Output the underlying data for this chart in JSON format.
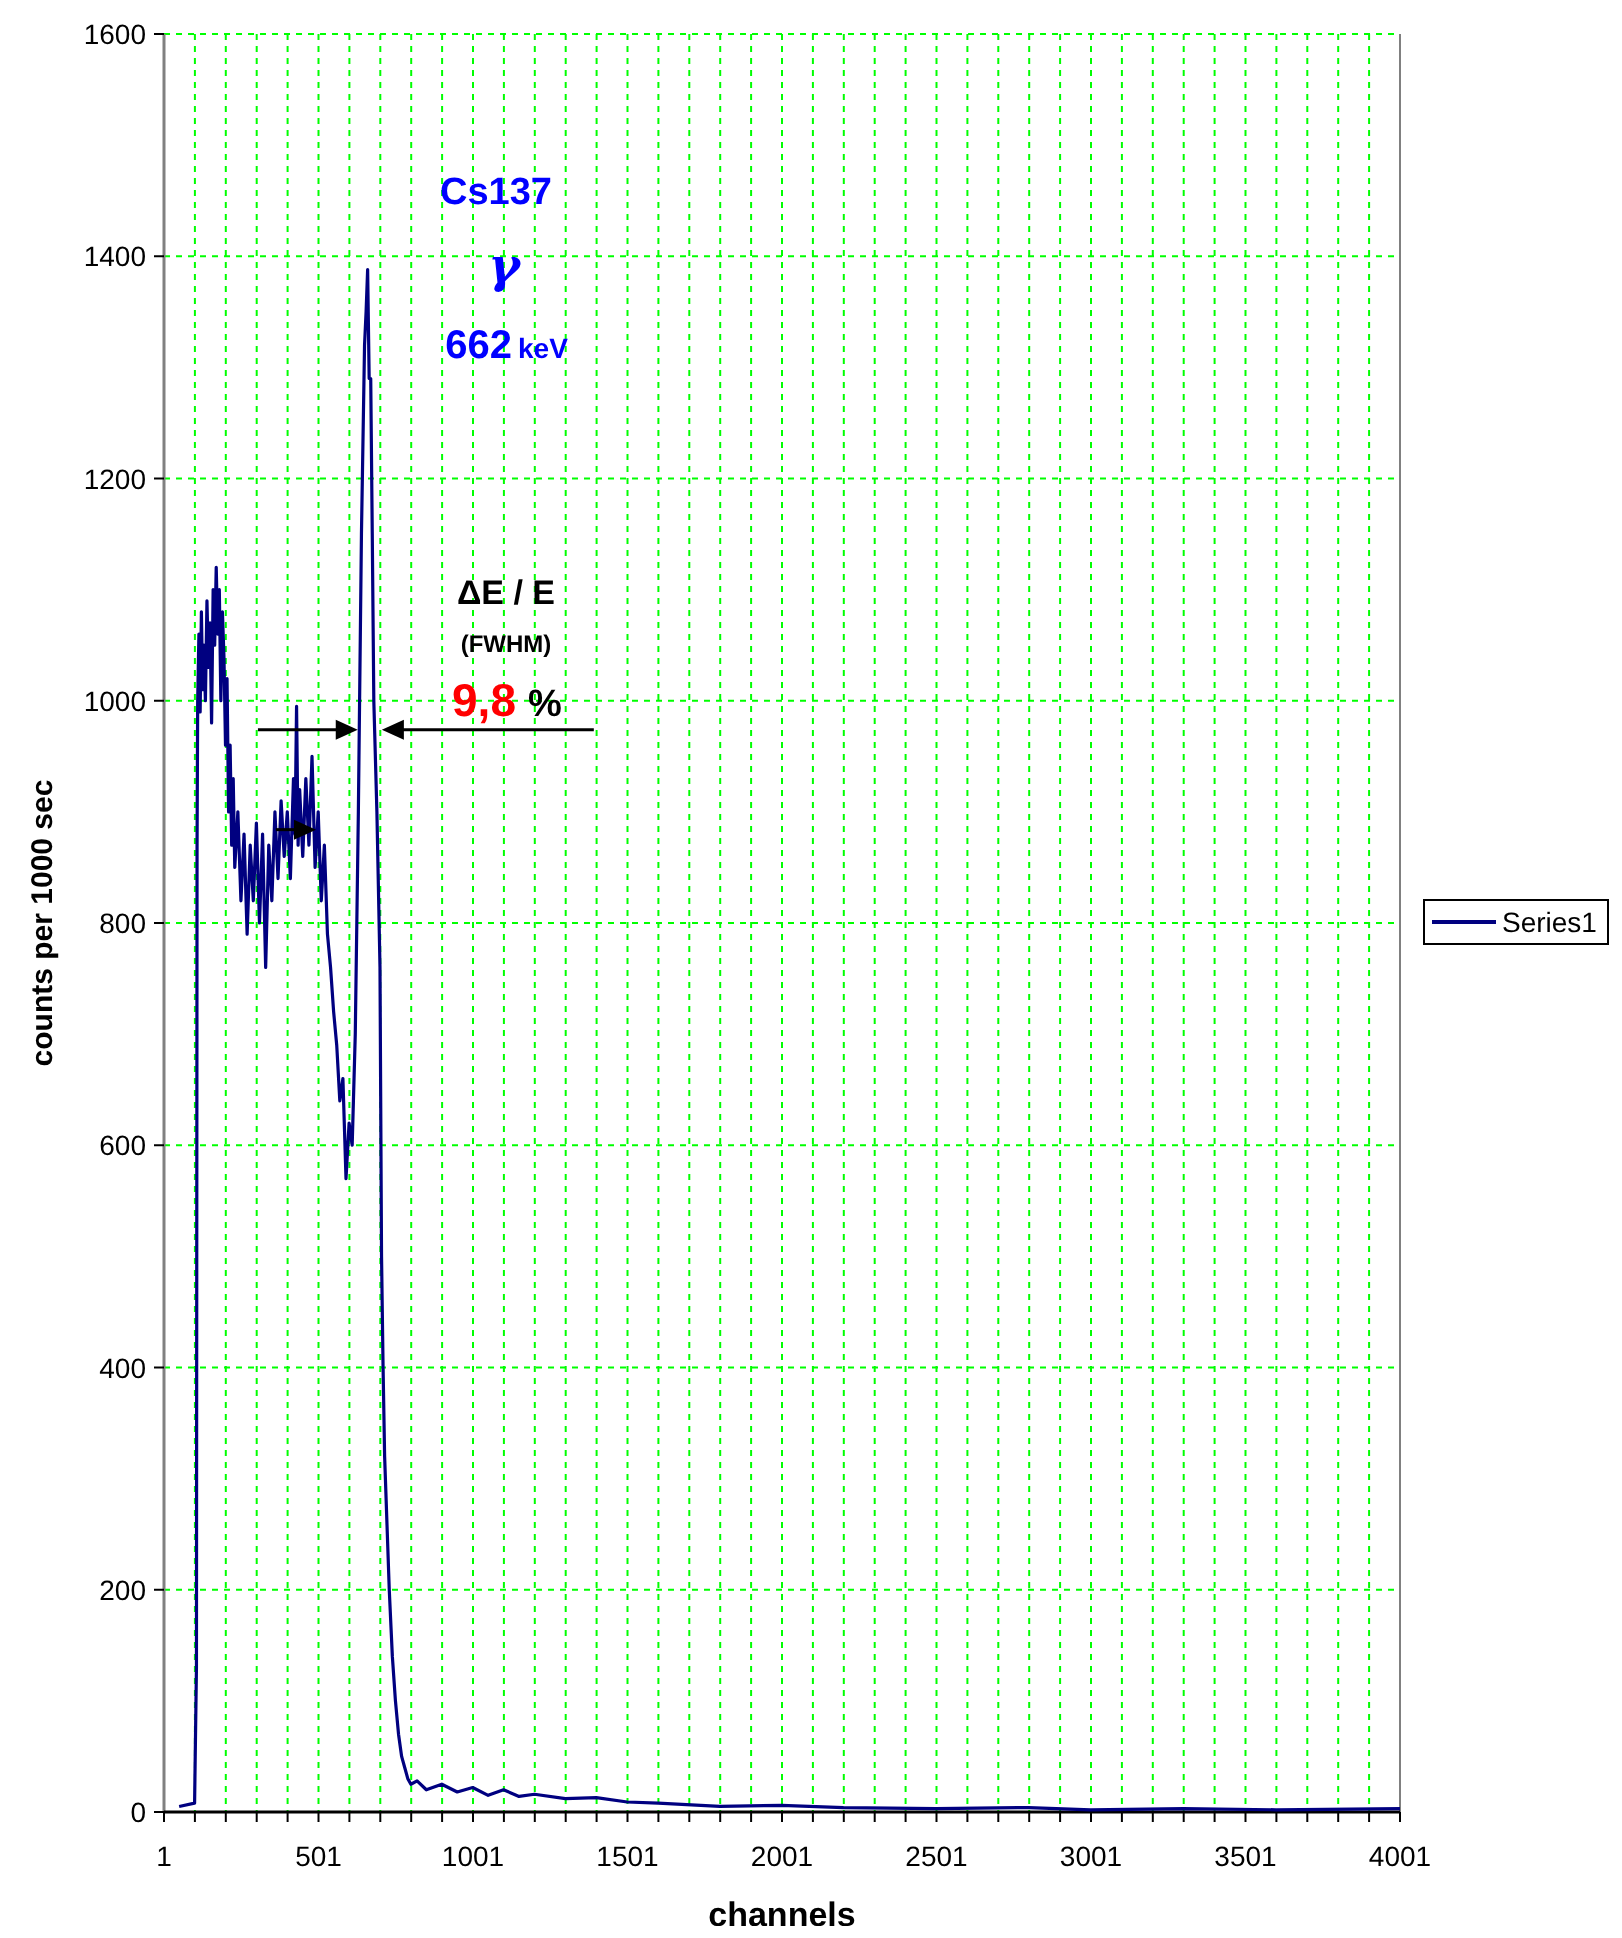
{
  "chart_data": {
    "type": "line",
    "xlabel": "channels",
    "ylabel": "counts per 1000 sec",
    "xlim": [
      1,
      4001
    ],
    "xticks": [
      1,
      {
        "value": 101,
        "label": null
      },
      {
        "value": 201,
        "label": null
      },
      {
        "value": 301,
        "label": null
      },
      {
        "value": 401,
        "label": null
      },
      501,
      {
        "value": 601,
        "label": null
      },
      {
        "value": 701,
        "label": null
      },
      {
        "value": 801,
        "label": null
      },
      {
        "value": 901,
        "label": null
      },
      1001,
      {
        "value": 1101,
        "label": null
      },
      {
        "value": 1201,
        "label": null
      },
      {
        "value": 1301,
        "label": null
      },
      {
        "value": 1401,
        "label": null
      },
      1501,
      {
        "value": 1601,
        "label": null
      },
      {
        "value": 1701,
        "label": null
      },
      {
        "value": 1801,
        "label": null
      },
      {
        "value": 1901,
        "label": null
      },
      2001,
      {
        "value": 2101,
        "label": null
      },
      {
        "value": 2201,
        "label": null
      },
      {
        "value": 2301,
        "label": null
      },
      {
        "value": 2401,
        "label": null
      },
      2501,
      {
        "value": 2601,
        "label": null
      },
      {
        "value": 2701,
        "label": null
      },
      {
        "value": 2801,
        "label": null
      },
      {
        "value": 2901,
        "label": null
      },
      3001,
      {
        "value": 3101,
        "label": null
      },
      {
        "value": 3201,
        "label": null
      },
      {
        "value": 3301,
        "label": null
      },
      {
        "value": 3401,
        "label": null
      },
      3501,
      {
        "value": 3601,
        "label": null
      },
      {
        "value": 3701,
        "label": null
      },
      {
        "value": 3801,
        "label": null
      },
      {
        "value": 3901,
        "label": null
      },
      4001
    ],
    "ylim": [
      0,
      1600
    ],
    "yticks": [
      0,
      200,
      400,
      600,
      800,
      1000,
      1200,
      1400,
      1600
    ],
    "grid": true,
    "legend": "right",
    "line_style": "solid",
    "annotations": [
      "Cs137",
      "γ",
      "662",
      "keV",
      "ΔE / E",
      "(FWHM)",
      "9,8",
      "%"
    ],
    "x": [
      50,
      100,
      106,
      108,
      110,
      114,
      118,
      122,
      126,
      130,
      135,
      140,
      145,
      150,
      155,
      160,
      165,
      170,
      175,
      180,
      185,
      190,
      195,
      200,
      205,
      210,
      215,
      220,
      225,
      230,
      240,
      250,
      260,
      270,
      280,
      290,
      300,
      310,
      320,
      330,
      340,
      350,
      360,
      370,
      380,
      390,
      400,
      410,
      420,
      425,
      430,
      435,
      440,
      450,
      460,
      470,
      480,
      490,
      500,
      510,
      520,
      530,
      540,
      550,
      560,
      570,
      580,
      590,
      600,
      610,
      620,
      630,
      640,
      650,
      655,
      660,
      665,
      670,
      675,
      680,
      690,
      700,
      705,
      710,
      715,
      720,
      730,
      740,
      750,
      760,
      770,
      780,
      790,
      800,
      820,
      850,
      900,
      950,
      1000,
      1050,
      1100,
      1150,
      1200,
      1300,
      1400,
      1500,
      1600,
      1800,
      2000,
      2200,
      2500,
      2800,
      3000,
      3300,
      3600,
      4001
    ],
    "series": [
      {
        "name": "Series1",
        "color": "#000080",
        "values": [
          5,
          8,
          130,
          870,
          1000,
          1060,
          990,
          1080,
          1010,
          1050,
          1000,
          1090,
          1030,
          1070,
          980,
          1100,
          1050,
          1120,
          1060,
          1100,
          1000,
          1080,
          1040,
          960,
          1020,
          900,
          960,
          870,
          930,
          850,
          900,
          820,
          880,
          790,
          870,
          820,
          890,
          800,
          880,
          760,
          870,
          820,
          900,
          840,
          910,
          860,
          900,
          840,
          930,
          880,
          995,
          870,
          920,
          860,
          930,
          870,
          950,
          850,
          900,
          820,
          870,
          790,
          760,
          720,
          690,
          640,
          660,
          570,
          620,
          600,
          700,
          900,
          1150,
          1320,
          1350,
          1388,
          1290,
          1290,
          1150,
          1000,
          900,
          760,
          500,
          400,
          320,
          280,
          200,
          140,
          100,
          70,
          50,
          40,
          30,
          25,
          28,
          20,
          25,
          18,
          22,
          15,
          20,
          14,
          16,
          12,
          13,
          9,
          8,
          5,
          6,
          4,
          3,
          4,
          2,
          3,
          2,
          3
        ]
      }
    ]
  }
}
